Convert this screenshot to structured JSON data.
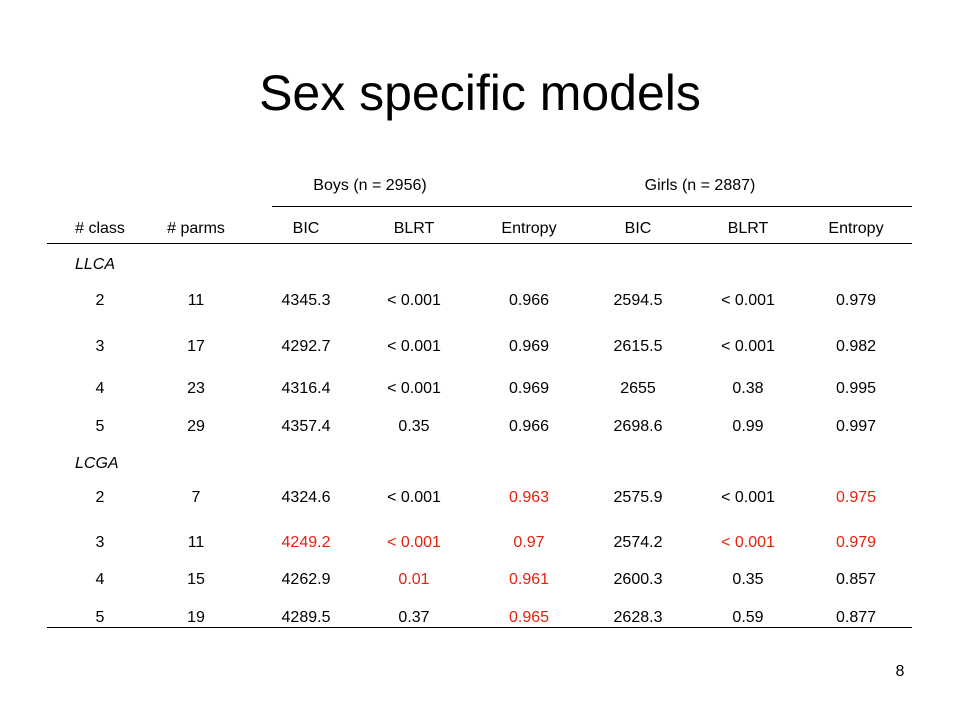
{
  "slide": {
    "title": "Sex specific models",
    "page_number": "8"
  },
  "table": {
    "group_headers": [
      "Boys (n = 2956)",
      "Girls (n = 2887)"
    ],
    "column_headers": [
      "# class",
      "# parms",
      "BIC",
      "BLRT",
      "Entropy",
      "BIC",
      "BLRT",
      "Entropy"
    ],
    "highlight_color": "#e8200e",
    "sections": [
      {
        "label": "LLCA",
        "rows": [
          {
            "cells": [
              "2",
              "11",
              "4345.3",
              "< 0.001",
              "0.966",
              "2594.5",
              "< 0.001",
              "0.979"
            ],
            "highlight": []
          },
          {
            "cells": [
              "3",
              "17",
              "4292.7",
              "< 0.001",
              "0.969",
              "2615.5",
              "< 0.001",
              "0.982"
            ],
            "highlight": []
          },
          {
            "cells": [
              "4",
              "23",
              "4316.4",
              "< 0.001",
              "0.969",
              "2655",
              "0.38",
              "0.995"
            ],
            "highlight": []
          },
          {
            "cells": [
              "5",
              "29",
              "4357.4",
              "0.35",
              "0.966",
              "2698.6",
              "0.99",
              "0.997"
            ],
            "highlight": []
          }
        ]
      },
      {
        "label": "LCGA",
        "rows": [
          {
            "cells": [
              "2",
              "7",
              "4324.6",
              "< 0.001",
              "0.963",
              "2575.9",
              "< 0.001",
              "0.975"
            ],
            "highlight": [
              4,
              7
            ]
          },
          {
            "cells": [
              "3",
              "11",
              "4249.2",
              "< 0.001",
              "0.97",
              "2574.2",
              "< 0.001",
              "0.979"
            ],
            "highlight": [
              2,
              3,
              4,
              6,
              7
            ]
          },
          {
            "cells": [
              "4",
              "15",
              "4262.9",
              "0.01",
              "0.961",
              "2600.3",
              "0.35",
              "0.857"
            ],
            "highlight": [
              3,
              4
            ]
          },
          {
            "cells": [
              "5",
              "19",
              "4289.5",
              "0.37",
              "0.965",
              "2628.3",
              "0.59",
              "0.877"
            ],
            "highlight": [
              4
            ]
          }
        ]
      }
    ]
  }
}
